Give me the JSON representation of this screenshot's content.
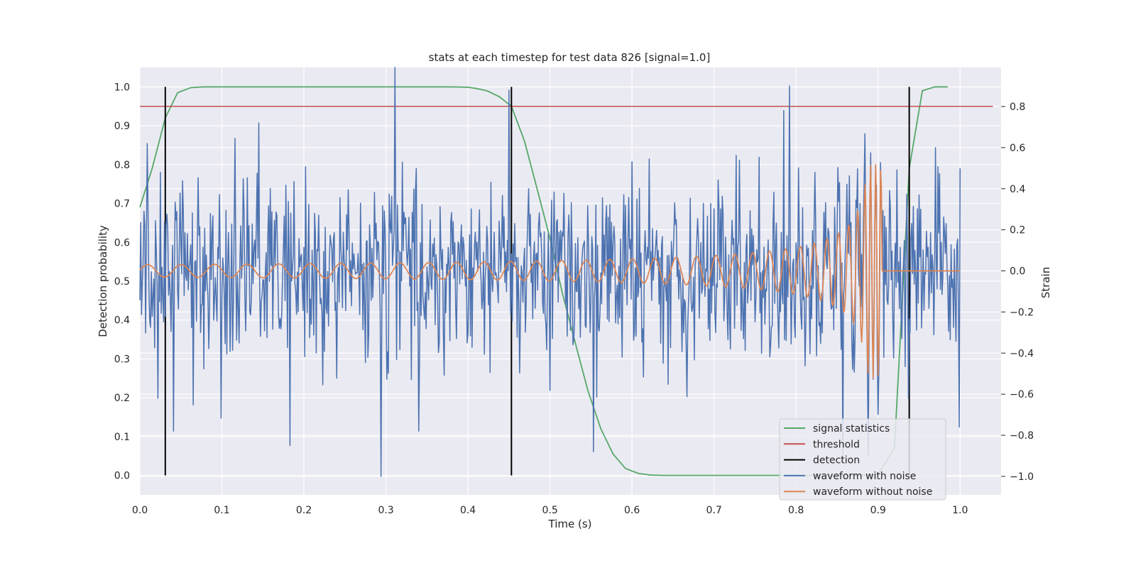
{
  "chart_data": {
    "type": "line",
    "title": "stats at each timestep for test data 826 [signal=1.0]",
    "xlabel": "Time (s)",
    "ylabel_left": "Detection probability",
    "ylabel_right": "Strain",
    "xlim": [
      0.0,
      1.05
    ],
    "ylim_left": [
      -0.05,
      1.05
    ],
    "ylim_right": [
      -1.09,
      0.99
    ],
    "xticks": [
      "0.0",
      "0.1",
      "0.2",
      "0.3",
      "0.4",
      "0.5",
      "0.6",
      "0.7",
      "0.8",
      "0.9",
      "1.0"
    ],
    "yticks_left": [
      "0.0",
      "0.1",
      "0.2",
      "0.3",
      "0.4",
      "0.5",
      "0.6",
      "0.7",
      "0.8",
      "0.9",
      "1.0"
    ],
    "yticks_right": [
      "−1.0",
      "−0.8",
      "−0.6",
      "−0.4",
      "−0.2",
      "0.0",
      "0.2",
      "0.4",
      "0.6",
      "0.8"
    ],
    "grid": true,
    "legend_placement": "lower-right",
    "colors": {
      "background": "#eaeaf2",
      "grid": "#ffffff",
      "signal_statistics": "#55a868",
      "threshold": "#c44e52",
      "detection": "#000000",
      "waveform_with_noise": "#4c72b0",
      "waveform_without_noise": "#dd8452"
    },
    "series": [
      {
        "name": "signal statistics",
        "axis": "left",
        "x": [
          0.0,
          0.015,
          0.031,
          0.046,
          0.062,
          0.077,
          0.092,
          0.11,
          0.2,
          0.3,
          0.38,
          0.4,
          0.41,
          0.423,
          0.438,
          0.453,
          0.469,
          0.484,
          0.5,
          0.515,
          0.531,
          0.546,
          0.562,
          0.577,
          0.592,
          0.608,
          0.623,
          0.64,
          0.7,
          0.8,
          0.88,
          0.9,
          0.92,
          0.938,
          0.954,
          0.969,
          0.985
        ],
        "y": [
          0.69,
          0.79,
          0.92,
          0.985,
          0.998,
          1.0,
          1.0,
          1.0,
          1.0,
          1.0,
          1.0,
          0.999,
          0.996,
          0.99,
          0.975,
          0.95,
          0.86,
          0.74,
          0.61,
          0.47,
          0.34,
          0.22,
          0.12,
          0.055,
          0.018,
          0.005,
          0.001,
          0.0,
          0.0,
          0.0,
          0.0,
          0.002,
          0.07,
          0.79,
          0.99,
          1.0,
          1.0
        ]
      },
      {
        "name": "threshold",
        "axis": "left",
        "x": [
          0.0,
          1.04
        ],
        "y": [
          0.95,
          0.95
        ]
      },
      {
        "name": "detection",
        "axis": "left",
        "x": [
          0.031,
          0.453,
          0.938
        ],
        "y_range": [
          0.0,
          1.0
        ]
      },
      {
        "name": "waveform with noise",
        "axis": "right",
        "noise_std": 0.22,
        "peaks": [
          {
            "x": 0.009,
            "y": 0.62
          },
          {
            "x": 0.022,
            "y": -0.62
          },
          {
            "x": 0.041,
            "y": -0.78
          },
          {
            "x": 0.145,
            "y": 0.72
          },
          {
            "x": 0.183,
            "y": -0.85
          },
          {
            "x": 0.294,
            "y": -1.0
          },
          {
            "x": 0.311,
            "y": 0.99
          },
          {
            "x": 0.34,
            "y": -0.78
          },
          {
            "x": 0.45,
            "y": 0.88
          },
          {
            "x": 0.553,
            "y": -0.88
          },
          {
            "x": 0.785,
            "y": 0.78
          },
          {
            "x": 0.792,
            "y": 0.9
          },
          {
            "x": 0.857,
            "y": -0.93
          },
          {
            "x": 0.888,
            "y": -0.9
          },
          {
            "x": 0.937,
            "y": -0.62
          },
          {
            "x": 0.97,
            "y": 0.6
          },
          {
            "x": 0.999,
            "y": -0.76
          }
        ]
      },
      {
        "name": "waveform without noise",
        "axis": "right",
        "chirp": {
          "f0": 24,
          "k": 18,
          "tc": 0.895,
          "a0": 0.03,
          "amax": 0.52,
          "cutoff": 0.905,
          "end": 1.0
        }
      }
    ]
  }
}
